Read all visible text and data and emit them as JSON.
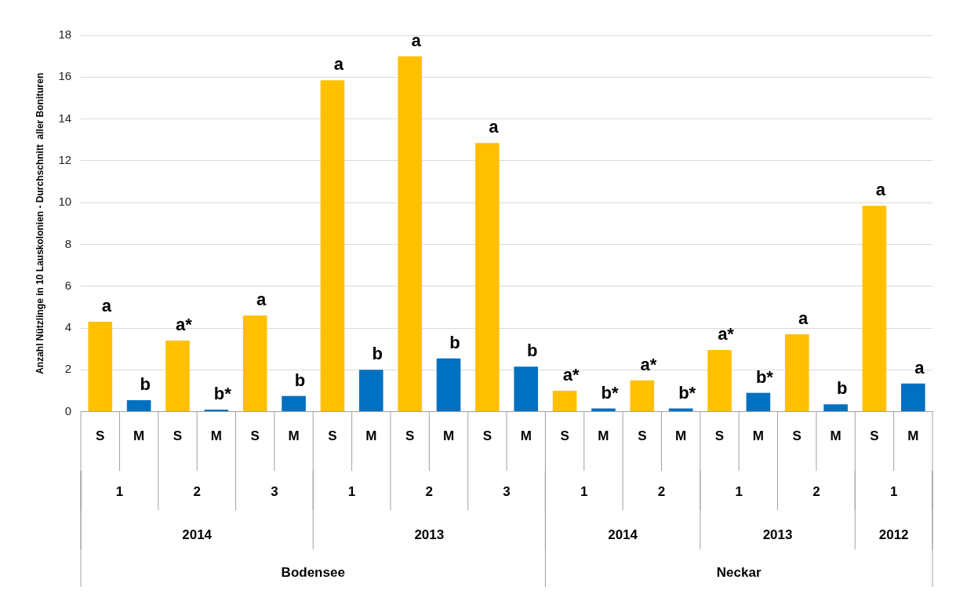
{
  "chart_data": {
    "type": "bar",
    "ylabel": "Anzahl Nützlinge in 10 Lauskolonien - Durchschnitt  aller Bonituren",
    "categories": [
      "S",
      "M",
      "S",
      "M",
      "S",
      "M",
      "S",
      "M",
      "S",
      "M",
      "S",
      "M",
      "S",
      "M",
      "S",
      "M",
      "S",
      "M",
      "S",
      "M",
      "S",
      "M"
    ],
    "values": [
      4.3,
      0.55,
      3.4,
      0.1,
      4.6,
      0.75,
      15.85,
      2.0,
      17.0,
      2.55,
      12.85,
      2.15,
      1.0,
      0.15,
      1.5,
      0.15,
      2.95,
      0.9,
      3.7,
      0.35,
      9.85,
      1.35
    ],
    "colors": [
      "#ffc000",
      "#0070c0",
      "#ffc000",
      "#0070c0",
      "#ffc000",
      "#0070c0",
      "#ffc000",
      "#0070c0",
      "#ffc000",
      "#0070c0",
      "#ffc000",
      "#0070c0",
      "#ffc000",
      "#0070c0",
      "#ffc000",
      "#0070c0",
      "#ffc000",
      "#0070c0",
      "#ffc000",
      "#0070c0",
      "#ffc000",
      "#0070c0"
    ],
    "value_labels": [
      "a",
      "b",
      "a*",
      "b*",
      "a",
      "b",
      "a",
      "b",
      "a",
      "b",
      "a",
      "b",
      "a*",
      "b*",
      "a*",
      "b*",
      "a*",
      "b*",
      "a",
      "b",
      "a",
      "a"
    ],
    "annotations": [
      "1",
      "2",
      "3",
      "1",
      "2",
      "3",
      "1",
      "2",
      "1",
      "2",
      "1",
      "2014",
      "2013",
      "2014",
      "2013",
      "2012",
      "Bodensee",
      "Neckar"
    ],
    "ylim": [
      0,
      18
    ],
    "yticks": [
      0,
      2,
      4,
      6,
      8,
      10,
      12,
      14,
      16,
      18
    ],
    "grid": "y",
    "legend": false
  }
}
